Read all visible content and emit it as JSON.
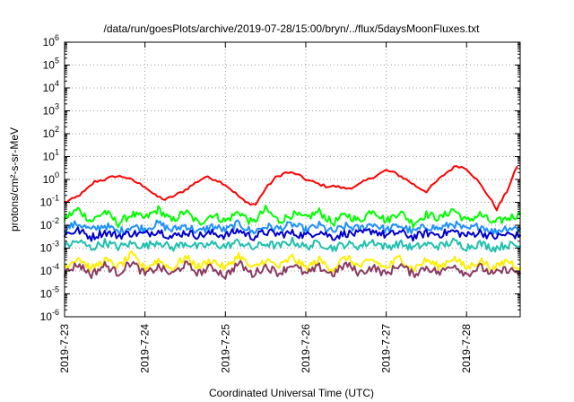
{
  "chart_data": {
    "type": "line",
    "title": "/data/run/goesPlots/archive/2019-07-28/15:00/bryn/../flux/5daysMoonFluxes.txt",
    "xlabel": "Coordinated Universal Time (UTC)",
    "ylabel": "protons/cm²-s-sr-MeV",
    "y_scale": "log",
    "ylim": [
      1e-06,
      1000000.0
    ],
    "y_ticks": [
      {
        "value": 1e-06,
        "base": "10",
        "exp": "-6"
      },
      {
        "value": 1e-05,
        "base": "10",
        "exp": "-5"
      },
      {
        "value": 0.0001,
        "base": "10",
        "exp": "-4"
      },
      {
        "value": 0.001,
        "base": "10",
        "exp": "-3"
      },
      {
        "value": 0.01,
        "base": "10",
        "exp": "-2"
      },
      {
        "value": 0.1,
        "base": "10",
        "exp": "-1"
      },
      {
        "value": 1,
        "base": "10",
        "exp": "0"
      },
      {
        "value": 10,
        "base": "10",
        "exp": "1"
      },
      {
        "value": 100,
        "base": "10",
        "exp": "2"
      },
      {
        "value": 1000,
        "base": "10",
        "exp": "3"
      },
      {
        "value": 10000,
        "base": "10",
        "exp": "4"
      },
      {
        "value": 100000,
        "base": "10",
        "exp": "5"
      },
      {
        "value": 1000000,
        "base": "10",
        "exp": "6"
      }
    ],
    "xlim": [
      "2019-07-23 00:00",
      "2019-07-28 16:00"
    ],
    "x_ticks": [
      {
        "value": "2019-07-23 00:00",
        "label": "2019-7-23"
      },
      {
        "value": "2019-07-24 00:00",
        "label": "2019-7-24"
      },
      {
        "value": "2019-07-25 00:00",
        "label": "2019-7-25"
      },
      {
        "value": "2019-07-26 00:00",
        "label": "2019-7-26"
      },
      {
        "value": "2019-07-27 00:00",
        "label": "2019-7-27"
      },
      {
        "value": "2019-07-28 00:00",
        "label": "2019-7-28"
      }
    ],
    "grid": true,
    "legend": "none",
    "series": [
      {
        "color": "#ff0000",
        "x": [
          "2019-07-23 00:00",
          "2019-07-23 03:00",
          "2019-07-23 06:00",
          "2019-07-23 09:00",
          "2019-07-23 12:00",
          "2019-07-23 15:00",
          "2019-07-23 18:00",
          "2019-07-23 21:00",
          "2019-07-24 00:00",
          "2019-07-24 03:00",
          "2019-07-24 06:00",
          "2019-07-24 09:00",
          "2019-07-24 12:00",
          "2019-07-24 15:00",
          "2019-07-24 18:00",
          "2019-07-24 21:00",
          "2019-07-25 00:00",
          "2019-07-25 03:00",
          "2019-07-25 06:00",
          "2019-07-25 09:00",
          "2019-07-25 12:00",
          "2019-07-25 15:00",
          "2019-07-25 18:00",
          "2019-07-25 21:00",
          "2019-07-26 00:00",
          "2019-07-26 03:00",
          "2019-07-26 06:00",
          "2019-07-26 09:00",
          "2019-07-26 12:00",
          "2019-07-26 15:00",
          "2019-07-26 18:00",
          "2019-07-26 21:00",
          "2019-07-27 00:00",
          "2019-07-27 03:00",
          "2019-07-27 06:00",
          "2019-07-27 09:00",
          "2019-07-27 12:00",
          "2019-07-27 15:00",
          "2019-07-27 18:00",
          "2019-07-27 21:00",
          "2019-07-28 00:00",
          "2019-07-28 03:00",
          "2019-07-28 06:00",
          "2019-07-28 09:00",
          "2019-07-28 12:00",
          "2019-07-28 15:00"
        ],
        "values": [
          0.1,
          0.15,
          0.3,
          0.8,
          1.0,
          1.4,
          1.3,
          0.8,
          0.5,
          0.2,
          0.13,
          0.2,
          0.35,
          0.7,
          1.3,
          1.0,
          0.6,
          0.25,
          0.1,
          0.08,
          0.4,
          1.2,
          2.0,
          1.8,
          1.0,
          0.7,
          0.5,
          0.5,
          0.4,
          0.5,
          0.9,
          1.5,
          2.5,
          1.8,
          1.0,
          0.5,
          0.3,
          0.8,
          2.0,
          4.0,
          3.0,
          1.0,
          0.25,
          0.05,
          0.3,
          3.5
        ]
      },
      {
        "color": "#00ff00",
        "x": [
          "2019-07-23 00:00",
          "2019-07-23 04:00",
          "2019-07-23 08:00",
          "2019-07-23 12:00",
          "2019-07-23 16:00",
          "2019-07-23 20:00",
          "2019-07-24 00:00",
          "2019-07-24 04:00",
          "2019-07-24 08:00",
          "2019-07-24 12:00",
          "2019-07-24 16:00",
          "2019-07-24 20:00",
          "2019-07-25 00:00",
          "2019-07-25 04:00",
          "2019-07-25 08:00",
          "2019-07-25 12:00",
          "2019-07-25 16:00",
          "2019-07-25 20:00",
          "2019-07-26 00:00",
          "2019-07-26 04:00",
          "2019-07-26 08:00",
          "2019-07-26 12:00",
          "2019-07-26 16:00",
          "2019-07-26 20:00",
          "2019-07-27 00:00",
          "2019-07-27 04:00",
          "2019-07-27 08:00",
          "2019-07-27 12:00",
          "2019-07-27 16:00",
          "2019-07-27 20:00",
          "2019-07-28 00:00",
          "2019-07-28 04:00",
          "2019-07-28 08:00",
          "2019-07-28 12:00",
          "2019-07-28 16:00"
        ],
        "values": [
          0.02,
          0.05,
          0.015,
          0.04,
          0.012,
          0.03,
          0.02,
          0.05,
          0.015,
          0.04,
          0.012,
          0.03,
          0.015,
          0.04,
          0.012,
          0.05,
          0.015,
          0.03,
          0.02,
          0.04,
          0.012,
          0.03,
          0.015,
          0.05,
          0.015,
          0.04,
          0.012,
          0.03,
          0.02,
          0.05,
          0.015,
          0.03,
          0.012,
          0.02,
          0.03
        ]
      },
      {
        "color": "#1e90ff",
        "x": [
          "2019-07-23 00:00",
          "2019-07-23 04:00",
          "2019-07-23 08:00",
          "2019-07-23 12:00",
          "2019-07-23 16:00",
          "2019-07-23 20:00",
          "2019-07-24 00:00",
          "2019-07-24 04:00",
          "2019-07-24 08:00",
          "2019-07-24 12:00",
          "2019-07-24 16:00",
          "2019-07-24 20:00",
          "2019-07-25 00:00",
          "2019-07-25 04:00",
          "2019-07-25 08:00",
          "2019-07-25 12:00",
          "2019-07-25 16:00",
          "2019-07-25 20:00",
          "2019-07-26 00:00",
          "2019-07-26 04:00",
          "2019-07-26 08:00",
          "2019-07-26 12:00",
          "2019-07-26 16:00",
          "2019-07-26 20:00",
          "2019-07-27 00:00",
          "2019-07-27 04:00",
          "2019-07-27 08:00",
          "2019-07-27 12:00",
          "2019-07-27 16:00",
          "2019-07-27 20:00",
          "2019-07-28 00:00",
          "2019-07-28 04:00",
          "2019-07-28 08:00",
          "2019-07-28 12:00",
          "2019-07-28 16:00"
        ],
        "values": [
          0.007,
          0.012,
          0.006,
          0.01,
          0.005,
          0.009,
          0.007,
          0.012,
          0.006,
          0.01,
          0.005,
          0.009,
          0.006,
          0.012,
          0.005,
          0.009,
          0.007,
          0.011,
          0.006,
          0.01,
          0.005,
          0.009,
          0.007,
          0.012,
          0.006,
          0.01,
          0.005,
          0.009,
          0.007,
          0.012,
          0.006,
          0.01,
          0.005,
          0.008,
          0.007
        ]
      },
      {
        "color": "#0000cd",
        "x": [
          "2019-07-23 00:00",
          "2019-07-23 04:00",
          "2019-07-23 08:00",
          "2019-07-23 12:00",
          "2019-07-23 16:00",
          "2019-07-23 20:00",
          "2019-07-24 00:00",
          "2019-07-24 04:00",
          "2019-07-24 08:00",
          "2019-07-24 12:00",
          "2019-07-24 16:00",
          "2019-07-24 20:00",
          "2019-07-25 00:00",
          "2019-07-25 04:00",
          "2019-07-25 08:00",
          "2019-07-25 12:00",
          "2019-07-25 16:00",
          "2019-07-25 20:00",
          "2019-07-26 00:00",
          "2019-07-26 04:00",
          "2019-07-26 08:00",
          "2019-07-26 12:00",
          "2019-07-26 16:00",
          "2019-07-26 20:00",
          "2019-07-27 00:00",
          "2019-07-27 04:00",
          "2019-07-27 08:00",
          "2019-07-27 12:00",
          "2019-07-27 16:00",
          "2019-07-27 20:00",
          "2019-07-28 00:00",
          "2019-07-28 04:00",
          "2019-07-28 08:00",
          "2019-07-28 12:00",
          "2019-07-28 16:00"
        ],
        "values": [
          0.004,
          0.006,
          0.003,
          0.005,
          0.0035,
          0.0045,
          0.004,
          0.006,
          0.003,
          0.005,
          0.0035,
          0.0045,
          0.0035,
          0.006,
          0.003,
          0.005,
          0.004,
          0.0045,
          0.0035,
          0.0055,
          0.003,
          0.0045,
          0.004,
          0.006,
          0.0035,
          0.005,
          0.003,
          0.0045,
          0.004,
          0.0055,
          0.0035,
          0.005,
          0.003,
          0.004,
          0.0035
        ]
      },
      {
        "color": "#20c0b0",
        "x": [
          "2019-07-23 00:00",
          "2019-07-23 04:00",
          "2019-07-23 08:00",
          "2019-07-23 12:00",
          "2019-07-23 16:00",
          "2019-07-23 20:00",
          "2019-07-24 00:00",
          "2019-07-24 04:00",
          "2019-07-24 08:00",
          "2019-07-24 12:00",
          "2019-07-24 16:00",
          "2019-07-24 20:00",
          "2019-07-25 00:00",
          "2019-07-25 04:00",
          "2019-07-25 08:00",
          "2019-07-25 12:00",
          "2019-07-25 16:00",
          "2019-07-25 20:00",
          "2019-07-26 00:00",
          "2019-07-26 04:00",
          "2019-07-26 08:00",
          "2019-07-26 12:00",
          "2019-07-26 16:00",
          "2019-07-26 20:00",
          "2019-07-27 00:00",
          "2019-07-27 04:00",
          "2019-07-27 08:00",
          "2019-07-27 12:00",
          "2019-07-27 16:00",
          "2019-07-27 20:00",
          "2019-07-28 00:00",
          "2019-07-28 04:00",
          "2019-07-28 08:00",
          "2019-07-28 12:00",
          "2019-07-28 16:00"
        ],
        "values": [
          0.0012,
          0.002,
          0.001,
          0.0018,
          0.0011,
          0.0016,
          0.0012,
          0.002,
          0.001,
          0.0017,
          0.0011,
          0.0015,
          0.0012,
          0.0019,
          0.001,
          0.0016,
          0.0012,
          0.002,
          0.0011,
          0.0017,
          0.001,
          0.0015,
          0.0012,
          0.002,
          0.0011,
          0.0016,
          0.001,
          0.0015,
          0.0012,
          0.0019,
          0.0011,
          0.0016,
          0.001,
          0.0014,
          0.0012
        ]
      },
      {
        "color": "#ffee00",
        "x": [
          "2019-07-23 00:00",
          "2019-07-23 04:00",
          "2019-07-23 08:00",
          "2019-07-23 12:00",
          "2019-07-23 16:00",
          "2019-07-23 20:00",
          "2019-07-24 00:00",
          "2019-07-24 04:00",
          "2019-07-24 08:00",
          "2019-07-24 12:00",
          "2019-07-24 16:00",
          "2019-07-24 20:00",
          "2019-07-25 00:00",
          "2019-07-25 04:00",
          "2019-07-25 08:00",
          "2019-07-25 12:00",
          "2019-07-25 16:00",
          "2019-07-25 20:00",
          "2019-07-26 00:00",
          "2019-07-26 04:00",
          "2019-07-26 08:00",
          "2019-07-26 12:00",
          "2019-07-26 16:00",
          "2019-07-26 20:00",
          "2019-07-27 00:00",
          "2019-07-27 04:00",
          "2019-07-27 08:00",
          "2019-07-27 12:00",
          "2019-07-27 16:00",
          "2019-07-27 20:00",
          "2019-07-28 00:00",
          "2019-07-28 04:00",
          "2019-07-28 08:00",
          "2019-07-28 12:00",
          "2019-07-28 16:00"
        ],
        "values": [
          0.00015,
          0.0004,
          0.00012,
          0.0003,
          0.00015,
          0.0005,
          0.00013,
          0.0003,
          0.00012,
          0.0004,
          0.00015,
          0.0003,
          0.00013,
          0.0005,
          0.00012,
          0.0003,
          0.00015,
          0.0004,
          0.00013,
          0.0003,
          0.00012,
          0.0004,
          0.00015,
          0.0003,
          0.00013,
          0.0004,
          0.00012,
          0.0003,
          0.00015,
          0.0004,
          0.00013,
          0.0003,
          0.00012,
          0.0003,
          0.00014
        ]
      },
      {
        "color": "#8b3a62",
        "x": [
          "2019-07-23 00:00",
          "2019-07-23 04:00",
          "2019-07-23 08:00",
          "2019-07-23 12:00",
          "2019-07-23 16:00",
          "2019-07-23 20:00",
          "2019-07-24 00:00",
          "2019-07-24 04:00",
          "2019-07-24 08:00",
          "2019-07-24 12:00",
          "2019-07-24 16:00",
          "2019-07-24 20:00",
          "2019-07-25 00:00",
          "2019-07-25 04:00",
          "2019-07-25 08:00",
          "2019-07-25 12:00",
          "2019-07-25 16:00",
          "2019-07-25 20:00",
          "2019-07-26 00:00",
          "2019-07-26 04:00",
          "2019-07-26 08:00",
          "2019-07-26 12:00",
          "2019-07-26 16:00",
          "2019-07-26 20:00",
          "2019-07-27 00:00",
          "2019-07-27 04:00",
          "2019-07-27 08:00",
          "2019-07-27 12:00",
          "2019-07-27 16:00",
          "2019-07-27 20:00",
          "2019-07-28 00:00",
          "2019-07-28 04:00",
          "2019-07-28 08:00",
          "2019-07-28 12:00",
          "2019-07-28 16:00"
        ],
        "values": [
          8e-05,
          0.0002,
          7e-05,
          0.00018,
          8e-05,
          0.00025,
          7e-05,
          0.00015,
          7e-05,
          0.0002,
          8e-05,
          0.00015,
          6e-05,
          0.00022,
          7e-05,
          0.00016,
          8e-05,
          0.0002,
          7e-05,
          0.00015,
          7e-05,
          0.0002,
          8e-05,
          0.00015,
          7e-05,
          0.0002,
          7e-05,
          0.00015,
          8e-05,
          0.0002,
          7e-05,
          0.00015,
          7e-05,
          0.00012,
          8e-05
        ]
      }
    ]
  }
}
